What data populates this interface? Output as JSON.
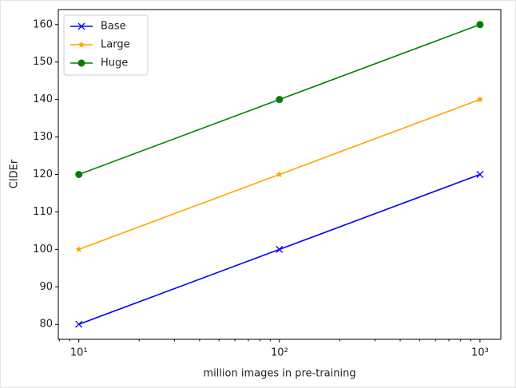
{
  "chart_data": {
    "type": "line",
    "xlabel": "million images in pre-training",
    "ylabel": "CIDEr",
    "x": [
      10,
      100,
      1000
    ],
    "series": [
      {
        "name": "Base",
        "color": "#0000ff",
        "marker": "x",
        "values": [
          80,
          100,
          120
        ]
      },
      {
        "name": "Large",
        "color": "#ffa500",
        "marker": "star",
        "values": [
          100,
          120,
          140
        ]
      },
      {
        "name": "Huge",
        "color": "#008000",
        "marker": "circle",
        "values": [
          120,
          140,
          160
        ]
      }
    ],
    "xscale": "log",
    "xlim": [
      7.9,
      1270
    ],
    "xticks": [
      {
        "value": 10,
        "label": "10¹"
      },
      {
        "value": 100,
        "label": "10²"
      },
      {
        "value": 1000,
        "label": "10³"
      }
    ],
    "xminorticks": [
      8,
      9,
      20,
      30,
      40,
      50,
      60,
      70,
      80,
      90,
      200,
      300,
      400,
      500,
      600,
      700,
      800,
      900
    ],
    "ylim": [
      76,
      164
    ],
    "yticks": [
      80,
      90,
      100,
      110,
      120,
      130,
      140,
      150,
      160
    ],
    "grid": false,
    "legend": "upper-left"
  }
}
